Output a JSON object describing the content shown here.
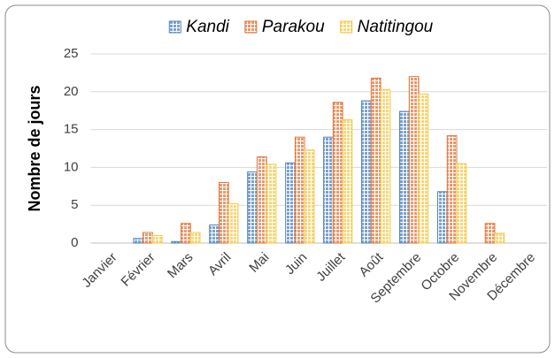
{
  "chart_data": {
    "type": "bar",
    "y_label": "Nombre de jours",
    "categories": [
      "Janvier",
      "Février",
      "Mars",
      "Avril",
      "Mai",
      "Juin",
      "Juillet",
      "Août",
      "Septembre",
      "Octobre",
      "Novembre",
      "Décembre"
    ],
    "series": [
      {
        "name": "Kandi",
        "color": "#4f81bd",
        "values": [
          0,
          0.6,
          0.2,
          2.4,
          9.4,
          10.6,
          14.0,
          18.8,
          17.4,
          6.8,
          0,
          0
        ]
      },
      {
        "name": "Parakou",
        "color": "#e0763a",
        "values": [
          0,
          1.4,
          2.6,
          8.0,
          11.4,
          14.0,
          18.6,
          21.8,
          22.0,
          14.2,
          2.6,
          0
        ]
      },
      {
        "name": "Natitingou",
        "color": "#f2c94a",
        "values": [
          0,
          1.0,
          1.4,
          5.2,
          10.4,
          12.3,
          16.3,
          20.3,
          19.7,
          10.5,
          1.3,
          0
        ]
      }
    ],
    "ylim": [
      0,
      25
    ],
    "yticks": [
      0,
      5,
      10,
      15,
      20,
      25
    ],
    "grid": true,
    "legend": "top"
  }
}
